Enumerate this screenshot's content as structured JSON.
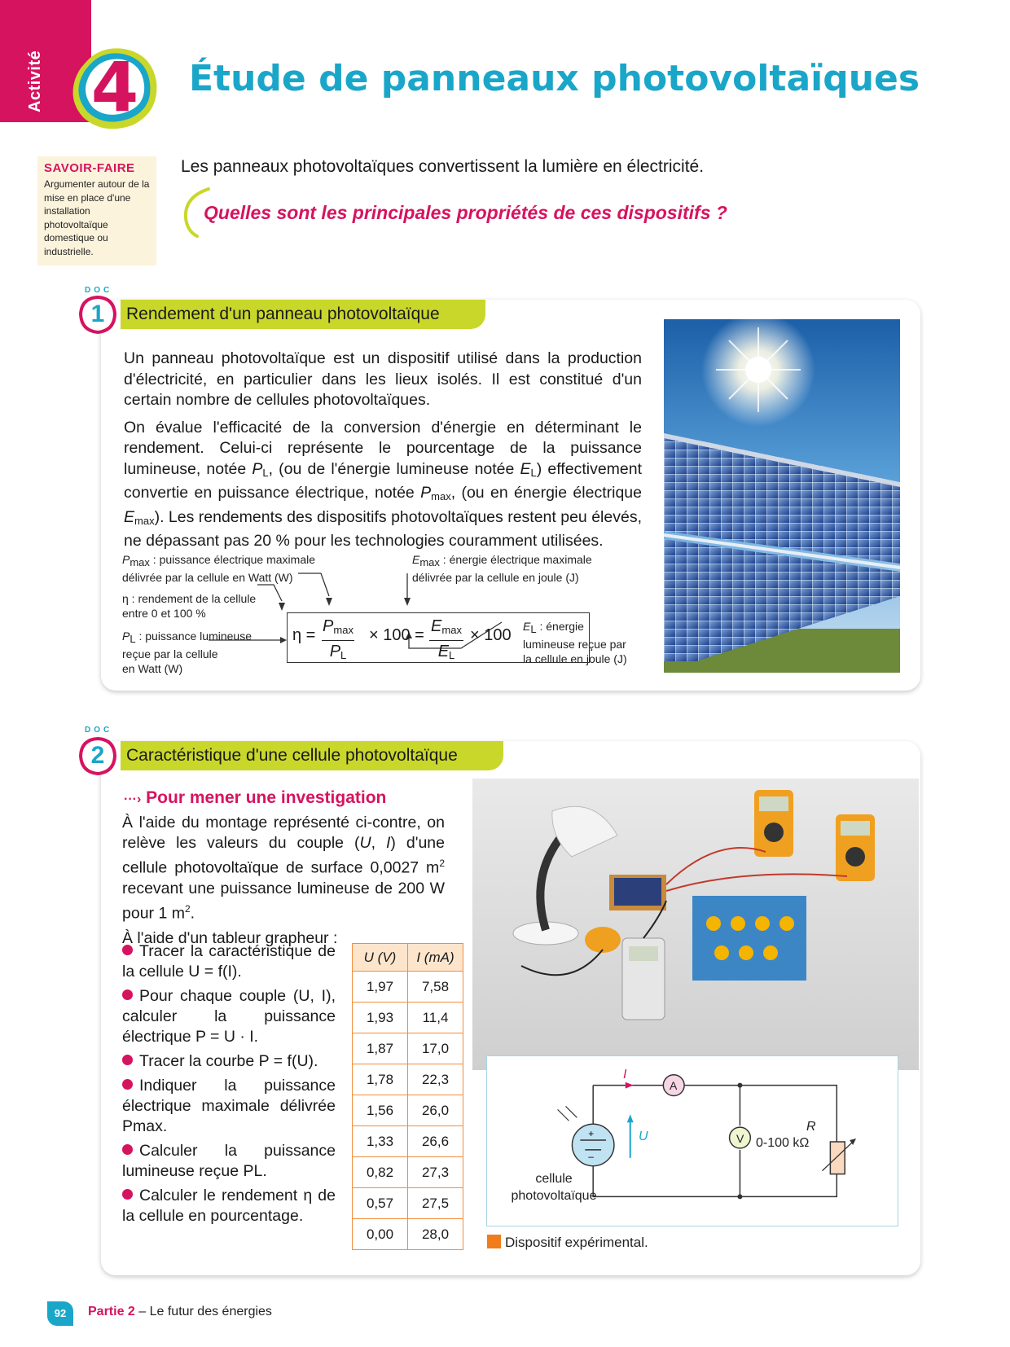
{
  "activity": {
    "label": "Activité",
    "number": "4"
  },
  "title": "Étude de panneaux photovoltaïques",
  "savoir_faire": {
    "heading": "SAVOIR-FAIRE",
    "text": "Argumenter autour de la mise en place d'une installation photovoltaïque domestique ou industrielle."
  },
  "intro": "Les panneaux photovoltaïques convertissent la lumière en électricité.",
  "question": "Quelles sont les principales propriétés de ces dispositifs ?",
  "doc1": {
    "tag": "DOC",
    "number": "1",
    "title": "Rendement d'un panneau photovoltaïque",
    "para1": "Un panneau photovoltaïque est un dispositif utilisé dans la production d'électricité, en particulier dans les lieux isolés. Il est constitué d'un certain nombre de cellules photovoltaïques.",
    "para2_a": "On évalue l'efficacité de la conversion d'énergie en déterminant le rendement. Celui-ci représente le pourcentage de la puissance lumineuse, notée ",
    "para2_b": ", (ou de l'énergie lumineuse notée ",
    "para2_c": ") effectivement convertie en puissance électrique, notée ",
    "para2_d": ", (ou en énergie électrique ",
    "para2_e": "). Les rendements des dispositifs photovoltaïques restent peu élevés, ne dépassant pas 20 % pour les technologies couramment utilisées.",
    "sym_P": "P",
    "sym_E": "E",
    "sub_L": "L",
    "sub_max": "max",
    "formula": {
      "pmax_label_a": " : puissance électrique maximale",
      "pmax_label_b": "délivrée par la cellule en Watt (W)",
      "emax_label_a": " : énergie électrique maximale",
      "emax_label_b": "délivrée par la cellule en joule (J)",
      "eta_label_a": "η : rendement de la cellule",
      "eta_label_b": "entre 0 et 100 %",
      "pl_label_a": " : puissance lumineuse",
      "pl_label_b": "reçue par la cellule",
      "pl_label_c": "en Watt (W)",
      "el_label_a": " : énergie",
      "el_label_b": "lumineuse reçue par",
      "el_label_c": "la cellule en joule (J)",
      "eta": "η =",
      "times100": "× 100 =",
      "times100_end": "× 100"
    }
  },
  "doc2": {
    "tag": "DOC",
    "number": "2",
    "title": "Caractéristique d'une cellule photovoltaïque",
    "investigation": "Pour mener une investigation",
    "para1_a": "À l'aide du montage représenté ci-contre, on relève les valeurs du couple (",
    "para1_b": ") d'une cellule photovoltaïque de surface 0,0027 m",
    "para1_c": " recevant une puissance lumineuse de 200 W pour 1 m",
    "para1_d": ".",
    "sym_U": "U",
    "sym_I": "I",
    "sup2": "2",
    "para2": "À l'aide d'un tableur grapheur :",
    "bullets": [
      "Tracer la caractéristique de la cellule U = f(I).",
      "Pour chaque couple (U, I), calculer la puissance électrique P = U · I.",
      "Tracer la courbe P = f(U).",
      "Indiquer la puissance électrique maximale délivrée Pmax.",
      "Calculer la puissance lumineuse reçue PL.",
      "Calculer le rendement η de la cellule en pourcentage."
    ],
    "table": {
      "headers": [
        "U (V)",
        "I (mA)"
      ],
      "rows": [
        [
          "1,97",
          "7,58"
        ],
        [
          "1,93",
          "11,4"
        ],
        [
          "1,87",
          "17,0"
        ],
        [
          "1,78",
          "22,3"
        ],
        [
          "1,56",
          "26,0"
        ],
        [
          "1,33",
          "26,6"
        ],
        [
          "0,82",
          "27,3"
        ],
        [
          "0,57",
          "27,5"
        ],
        [
          "0,00",
          "28,0"
        ]
      ]
    },
    "circuit": {
      "label_I": "I",
      "label_U": "U",
      "ammeter": "A",
      "voltmeter": "V",
      "resistor": "R",
      "resistor_range": "0-100 kΩ",
      "cell_label_a": "cellule",
      "cell_label_b": "photovoltaïque"
    },
    "legend": "Dispositif expérimental."
  },
  "footer": {
    "page": "92",
    "part": "Partie 2",
    "text": " – Le futur des énergies"
  },
  "colors": {
    "magenta": "#d6135f",
    "cyan": "#1aa6c8",
    "lime": "#c9d72a",
    "orange": "#f07c1a"
  }
}
